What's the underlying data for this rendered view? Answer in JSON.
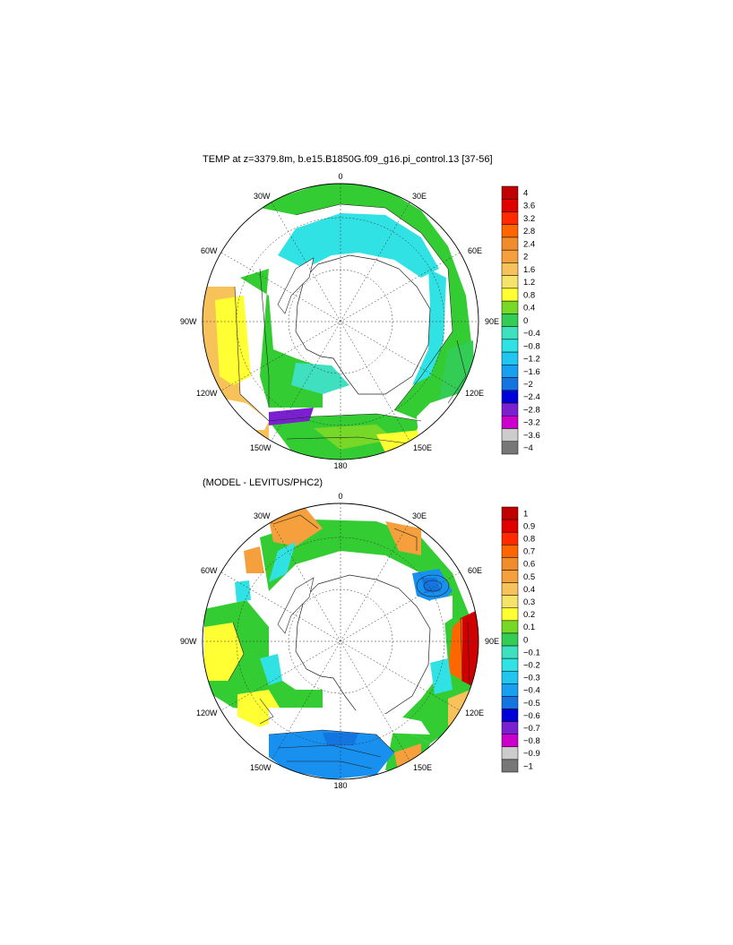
{
  "panels": [
    {
      "title": "TEMP at z=3379.8m, b.e15.B1850G.f09_g16.pi_control.13 [37-56]",
      "lon_labels": {
        "top": "0",
        "top_left": "30W",
        "top_right": "30E",
        "left_upper": "60W",
        "right_upper": "60E",
        "left": "90W",
        "right": "90E",
        "left_lower": "120W",
        "right_lower": "120E",
        "bottom_left": "150W",
        "bottom_right": "150E",
        "bottom": "180"
      },
      "colorbar": {
        "labels": [
          "4",
          "3.6",
          "3.2",
          "2.8",
          "2.4",
          "2",
          "1.6",
          "1.2",
          "0.8",
          "0.4",
          "0",
          "−0.4",
          "−0.8",
          "−1.2",
          "−1.6",
          "−2",
          "−2.4",
          "−2.8",
          "−3.2",
          "−3.6",
          "−4"
        ],
        "colors": [
          "#c00000",
          "#e00000",
          "#ff2a00",
          "#ff6600",
          "#f08c2c",
          "#f5a03c",
          "#f7c25a",
          "#f5e36a",
          "#ffff33",
          "#77d828",
          "#33cc55",
          "#3ee0c0",
          "#30e2e4",
          "#20c6f0",
          "#18a0f0",
          "#1474e0",
          "#0000d8",
          "#7a20d0",
          "#cc00cc",
          "#cccccc",
          "#777777"
        ]
      },
      "field_colors": {
        "land": "#ffffff",
        "warm": "#f7c25a",
        "mid": "#ffff33",
        "green": "#33cc33",
        "cyan": "#30e2e4",
        "teal": "#3ee0c0"
      }
    },
    {
      "title": "(MODEL - LEVITUS/PHC2)",
      "lon_labels": {
        "top": "0",
        "top_left": "30W",
        "top_right": "30E",
        "left_upper": "60W",
        "right_upper": "60E",
        "left": "90W",
        "right": "90E",
        "left_lower": "120W",
        "right_lower": "120E",
        "bottom_left": "150W",
        "bottom_right": "150E",
        "bottom": "180"
      },
      "colorbar": {
        "labels": [
          "1",
          "0.9",
          "0.8",
          "0.7",
          "0.6",
          "0.5",
          "0.4",
          "0.3",
          "0.2",
          "0.1",
          "0",
          "−0.1",
          "−0.2",
          "−0.3",
          "−0.4",
          "−0.5",
          "−0.6",
          "−0.7",
          "−0.8",
          "−0.9",
          "−1"
        ],
        "colors": [
          "#c00000",
          "#e00000",
          "#ff2a00",
          "#ff6600",
          "#f08c2c",
          "#f5a03c",
          "#f7c25a",
          "#f5e36a",
          "#ffff33",
          "#77d828",
          "#33cc55",
          "#3ee0c0",
          "#30e2e4",
          "#20c6f0",
          "#18a0f0",
          "#1474e0",
          "#0000d8",
          "#7a20d0",
          "#cc00cc",
          "#cccccc",
          "#777777"
        ]
      },
      "field_colors": {
        "land": "#ffffff",
        "green": "#33cc33",
        "cyan": "#30e2e4",
        "blue": "#1890f0",
        "orange": "#f5a03c",
        "yellow": "#ffff33",
        "red": "#d00000"
      }
    }
  ]
}
